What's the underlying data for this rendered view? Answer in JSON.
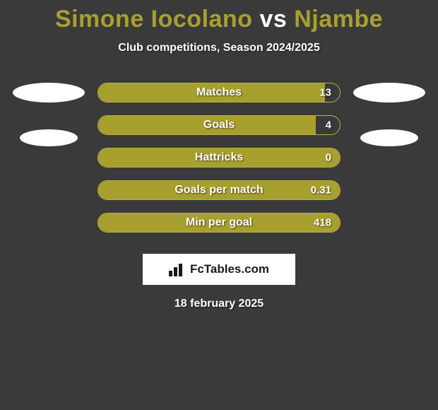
{
  "title": {
    "player1": "Simone Iocolano",
    "vs": "vs",
    "player2": "Njambe",
    "color1": "#a8a02e",
    "vs_color": "#ffffff",
    "color2": "#a8a02e"
  },
  "subtitle": "Club competitions, Season 2024/2025",
  "background_color": "#3a3a3a",
  "bar_color": "#a8a02e",
  "bar_border_color": "#b8b04a",
  "stats": [
    {
      "label": "Matches",
      "value": "13",
      "fill_pct": 94
    },
    {
      "label": "Goals",
      "value": "4",
      "fill_pct": 90
    },
    {
      "label": "Hattricks",
      "value": "0",
      "fill_pct": 100
    },
    {
      "label": "Goals per match",
      "value": "0.31",
      "fill_pct": 100
    },
    {
      "label": "Min per goal",
      "value": "418",
      "fill_pct": 100
    }
  ],
  "avatars": {
    "background": "#ffffff"
  },
  "logo": {
    "text": "FcTables.com"
  },
  "date": "18 february 2025"
}
